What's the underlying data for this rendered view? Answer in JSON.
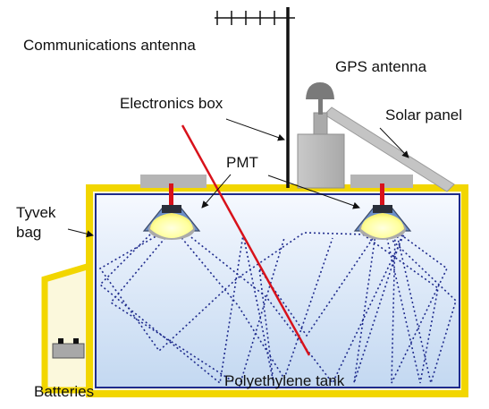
{
  "labels": {
    "communications_antenna": "Communications antenna",
    "gps_antenna": "GPS antenna",
    "electronics_box": "Electronics box",
    "solar_panel": "Solar panel",
    "pmt": "PMT",
    "tyvek_bag_line1": "Tyvek",
    "tyvek_bag_line2": "bag",
    "batteries": "Batteries",
    "polyethylene_tank": "Polyethylene tank"
  },
  "colors": {
    "tank_outline": "#f2d600",
    "tank_fill": "#f7f3c6",
    "water_top": "#f6f9ff",
    "water_bottom": "#c7dcf3",
    "bag_outline": "#1e2a8c",
    "particle_track": "#d8121b",
    "light_paths": "#1e2a8c",
    "equipment_gray": "#b3b3b3",
    "pmt_glow": "#ffffa0",
    "antenna": "#111111"
  }
}
